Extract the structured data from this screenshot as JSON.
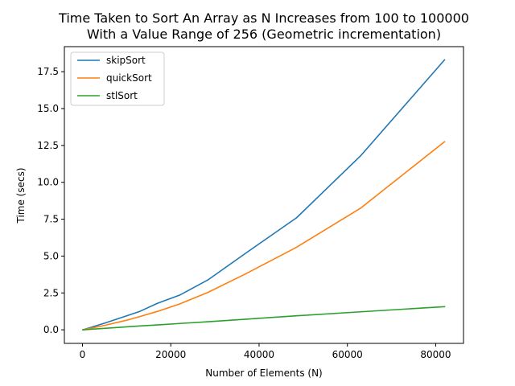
{
  "chart_data": {
    "type": "line",
    "title_lines": [
      "Time Taken to Sort An Array as N Increases from 100 to 100000",
      "With a Value Range of 256 (Geometric incrementation)"
    ],
    "xlabel": "Number of Elements (N)",
    "ylabel": "Time (secs)",
    "xlim": [
      -4100,
      86300
    ],
    "ylim": [
      -0.92,
      19.2
    ],
    "xticks": [
      0,
      20000,
      40000,
      60000,
      80000
    ],
    "xtick_labels": [
      "0",
      "20000",
      "40000",
      "60000",
      "80000"
    ],
    "yticks": [
      0.0,
      2.5,
      5.0,
      7.5,
      10.0,
      12.5,
      15.0,
      17.5
    ],
    "ytick_labels": [
      "0.0",
      "2.5",
      "5.0",
      "7.5",
      "10.0",
      "12.5",
      "15.0",
      "17.5"
    ],
    "grid": false,
    "legend_position": "top-left",
    "series": [
      {
        "name": "skipSort",
        "color": "#1f77b4",
        "x": [
          100,
          5000,
          10000,
          13000,
          17000,
          22000,
          28500,
          37000,
          48500,
          63000,
          82000
        ],
        "y": [
          0.0,
          0.45,
          0.95,
          1.25,
          1.8,
          2.35,
          3.4,
          5.2,
          7.6,
          11.8,
          18.3
        ]
      },
      {
        "name": "quickSort",
        "color": "#ff7f0e",
        "x": [
          100,
          5000,
          10000,
          13000,
          17000,
          22000,
          28500,
          37000,
          48500,
          63000,
          82000
        ],
        "y": [
          0.0,
          0.3,
          0.65,
          0.9,
          1.25,
          1.75,
          2.55,
          3.8,
          5.6,
          8.25,
          12.75
        ]
      },
      {
        "name": "stlSort",
        "color": "#2ca02c",
        "x": [
          100,
          5000,
          10000,
          13000,
          17000,
          22000,
          28500,
          37000,
          48500,
          63000,
          82000
        ],
        "y": [
          0.0,
          0.1,
          0.2,
          0.26,
          0.33,
          0.43,
          0.55,
          0.72,
          0.95,
          1.22,
          1.57
        ]
      }
    ]
  }
}
